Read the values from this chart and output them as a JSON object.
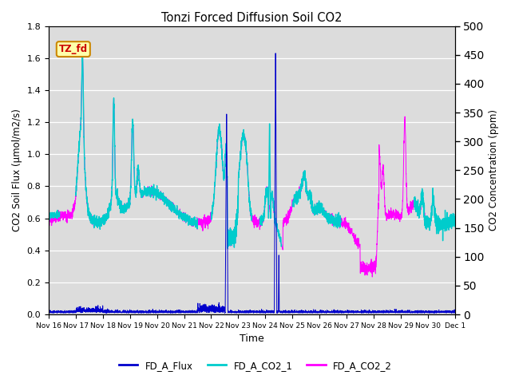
{
  "title": "Tonzi Forced Diffusion Soil CO2",
  "xlabel": "Time",
  "ylabel_left": "CO2 Soil Flux (μmol/m2/s)",
  "ylabel_right": "CO2 Concentration (ppm)",
  "left_ylim": [
    0,
    1.8
  ],
  "right_ylim": [
    0,
    500
  ],
  "left_yticks": [
    0.0,
    0.2,
    0.4,
    0.6,
    0.8,
    1.0,
    1.2,
    1.4,
    1.6,
    1.8
  ],
  "right_yticks": [
    0,
    50,
    100,
    150,
    200,
    250,
    300,
    350,
    400,
    450,
    500
  ],
  "color_flux": "#0000CC",
  "color_co2_1": "#00CCCC",
  "color_co2_2": "#FF00FF",
  "label_flux": "FD_A_Flux",
  "label_co2_1": "FD_A_CO2_1",
  "label_co2_2": "FD_A_CO2_2",
  "tag_text": "TZ_fd",
  "tag_bg": "#FFFFAA",
  "tag_border": "#CC8800",
  "tag_text_color": "#CC0000",
  "plot_bg": "#DCDCDC",
  "fig_bg": "#FFFFFF",
  "n_points": 4320,
  "xtick_labels": [
    "Nov 16",
    "Nov 17",
    "Nov 18",
    "Nov 19",
    "Nov 20",
    "Nov 21",
    "Nov 22",
    "Nov 23",
    "Nov 24",
    "Nov 25",
    "Nov 26",
    "Nov 27",
    "Nov 28",
    "Nov 29",
    "Nov 30",
    "Dec 1"
  ],
  "figsize": [
    6.4,
    4.8
  ],
  "dpi": 100
}
